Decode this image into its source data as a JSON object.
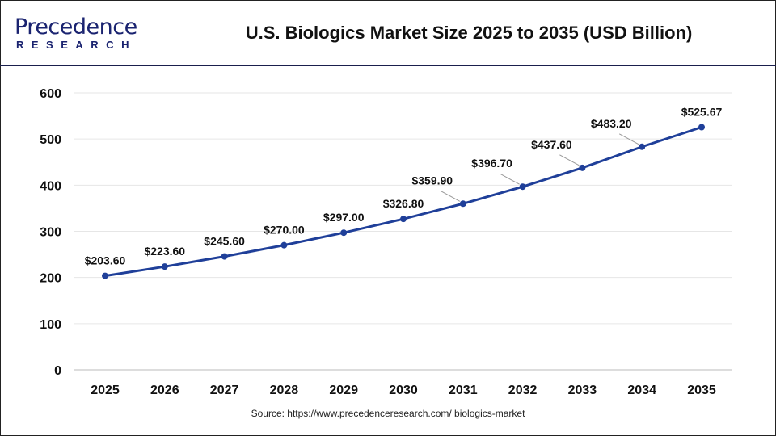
{
  "header": {
    "logo_text": "Precedence",
    "logo_sub": "RESEARCH",
    "title": "U.S. Biologics Market Size 2025 to 2035 (USD Billion)"
  },
  "source": "Source: https://www.precedenceresearch.com/ biologics-market",
  "colors": {
    "line": "#1f3f99",
    "grid": "#e6e6e6"
  },
  "chart_data": {
    "type": "line",
    "title": "U.S. Biologics Market Size 2025 to 2035 (USD Billion)",
    "xlabel": "",
    "ylabel": "",
    "categories": [
      "2025",
      "2026",
      "2027",
      "2028",
      "2029",
      "2030",
      "2031",
      "2032",
      "2033",
      "2034",
      "2035"
    ],
    "values": [
      203.6,
      223.6,
      245.6,
      270.0,
      297.0,
      326.8,
      359.9,
      396.7,
      437.6,
      483.2,
      525.67
    ],
    "labels": [
      "$203.60",
      "$223.60",
      "$245.60",
      "$270.00",
      "$297.00",
      "$326.80",
      "$359.90",
      "$396.70",
      "$437.60",
      "$483.20",
      "$525.67"
    ],
    "ylim": [
      0,
      600
    ],
    "yticks": [
      0,
      100,
      200,
      300,
      400,
      500,
      600
    ],
    "grid": true,
    "legend": "none"
  }
}
